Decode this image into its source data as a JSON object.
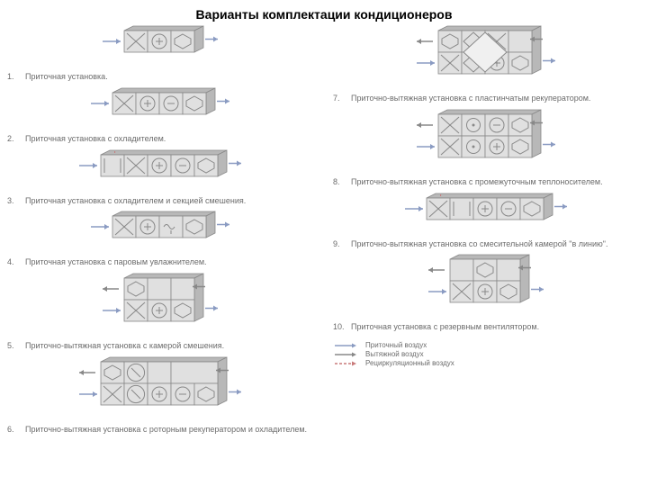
{
  "title": "Варианты комплектации кондиционеров",
  "style": {
    "background": "#ffffff",
    "block_fill": "#e0e0e0",
    "block_fill_dark": "#b8b8b8",
    "block_stroke": "#888888",
    "text_color": "#6b6b6b",
    "arrow_supply": "#8a9bc2",
    "arrow_exhaust": "#888888",
    "arrow_recirc": "#c97a7a",
    "title_fontsize": 14,
    "caption_fontsize": 9
  },
  "left": [
    {
      "num": "1.",
      "label": "Приточная установка.",
      "rows": 1,
      "modules": [
        [
          "X",
          "H",
          "F"
        ]
      ]
    },
    {
      "num": "2.",
      "label": "Приточная установка с охладителем.",
      "rows": 1,
      "modules": [
        [
          "X",
          "H",
          "C",
          "F"
        ]
      ]
    },
    {
      "num": "3.",
      "label": "Приточная установка с охладителем и секцией смешения.",
      "rows": 1,
      "modules": [
        [
          "M",
          "X",
          "H",
          "C",
          "F"
        ]
      ],
      "mix": true
    },
    {
      "num": "4.",
      "label": "Приточная установка с паровым увлажнителем.",
      "rows": 1,
      "modules": [
        [
          "X",
          "H",
          "S",
          "F"
        ]
      ]
    },
    {
      "num": "5.",
      "label": "Приточно-вытяжная установка с камерой смешения.",
      "rows": 2,
      "modules": [
        [
          "F",
          "B"
        ],
        [
          "X",
          "H",
          "F"
        ]
      ],
      "mix": true
    },
    {
      "num": "6.",
      "label": "Приточно-вытяжная установка с роторным рекуператором и охладителем.",
      "rows": 2,
      "modules": [
        [
          "F",
          "R",
          "B"
        ],
        [
          "X",
          "R",
          "H",
          "C",
          "F"
        ]
      ],
      "rotary": true
    }
  ],
  "right": [
    {
      "num": "7.",
      "label": "Приточно-вытяжная установка с пластинчатым рекуператором.",
      "rows": 2,
      "modules": [
        [
          "F",
          "P",
          "X"
        ],
        [
          "X",
          "P",
          "H",
          "F"
        ]
      ],
      "plate": true
    },
    {
      "num": "8.",
      "label": "Приточно-вытяжная установка с промежуточным теплоносителем.",
      "rows": 2,
      "modules": [
        [
          "X",
          "I",
          "C",
          "F"
        ],
        [
          "X",
          "I",
          "H",
          "F"
        ]
      ]
    },
    {
      "num": "9.",
      "label": "Приточно-вытяжная установка со смесительной камерой \"в линию\".",
      "rows": 1,
      "modules": [
        [
          "X",
          "M",
          "H",
          "C",
          "F"
        ]
      ],
      "inline_mix": true
    },
    {
      "num": "10.",
      "label": "Приточная установка с резервным вентилятором.",
      "rows": 2,
      "modules": [
        [
          "B",
          "F"
        ],
        [
          "X",
          "H",
          "F"
        ]
      ]
    }
  ],
  "legend": [
    {
      "color": "#8a9bc2",
      "style": "solid",
      "label": "Приточный воздух"
    },
    {
      "color": "#888888",
      "style": "solid",
      "label": "Вытяжной воздух"
    },
    {
      "color": "#c97a7a",
      "style": "dashed",
      "label": "Рециркуляционный воздух"
    }
  ],
  "module_symbols": {
    "X": "filter_cross",
    "H": "heater_plus",
    "C": "cooler_minus",
    "F": "fan",
    "S": "steam",
    "M": "mix",
    "R": "rotary",
    "P": "plate",
    "I": "intermediate",
    "B": "blank"
  }
}
